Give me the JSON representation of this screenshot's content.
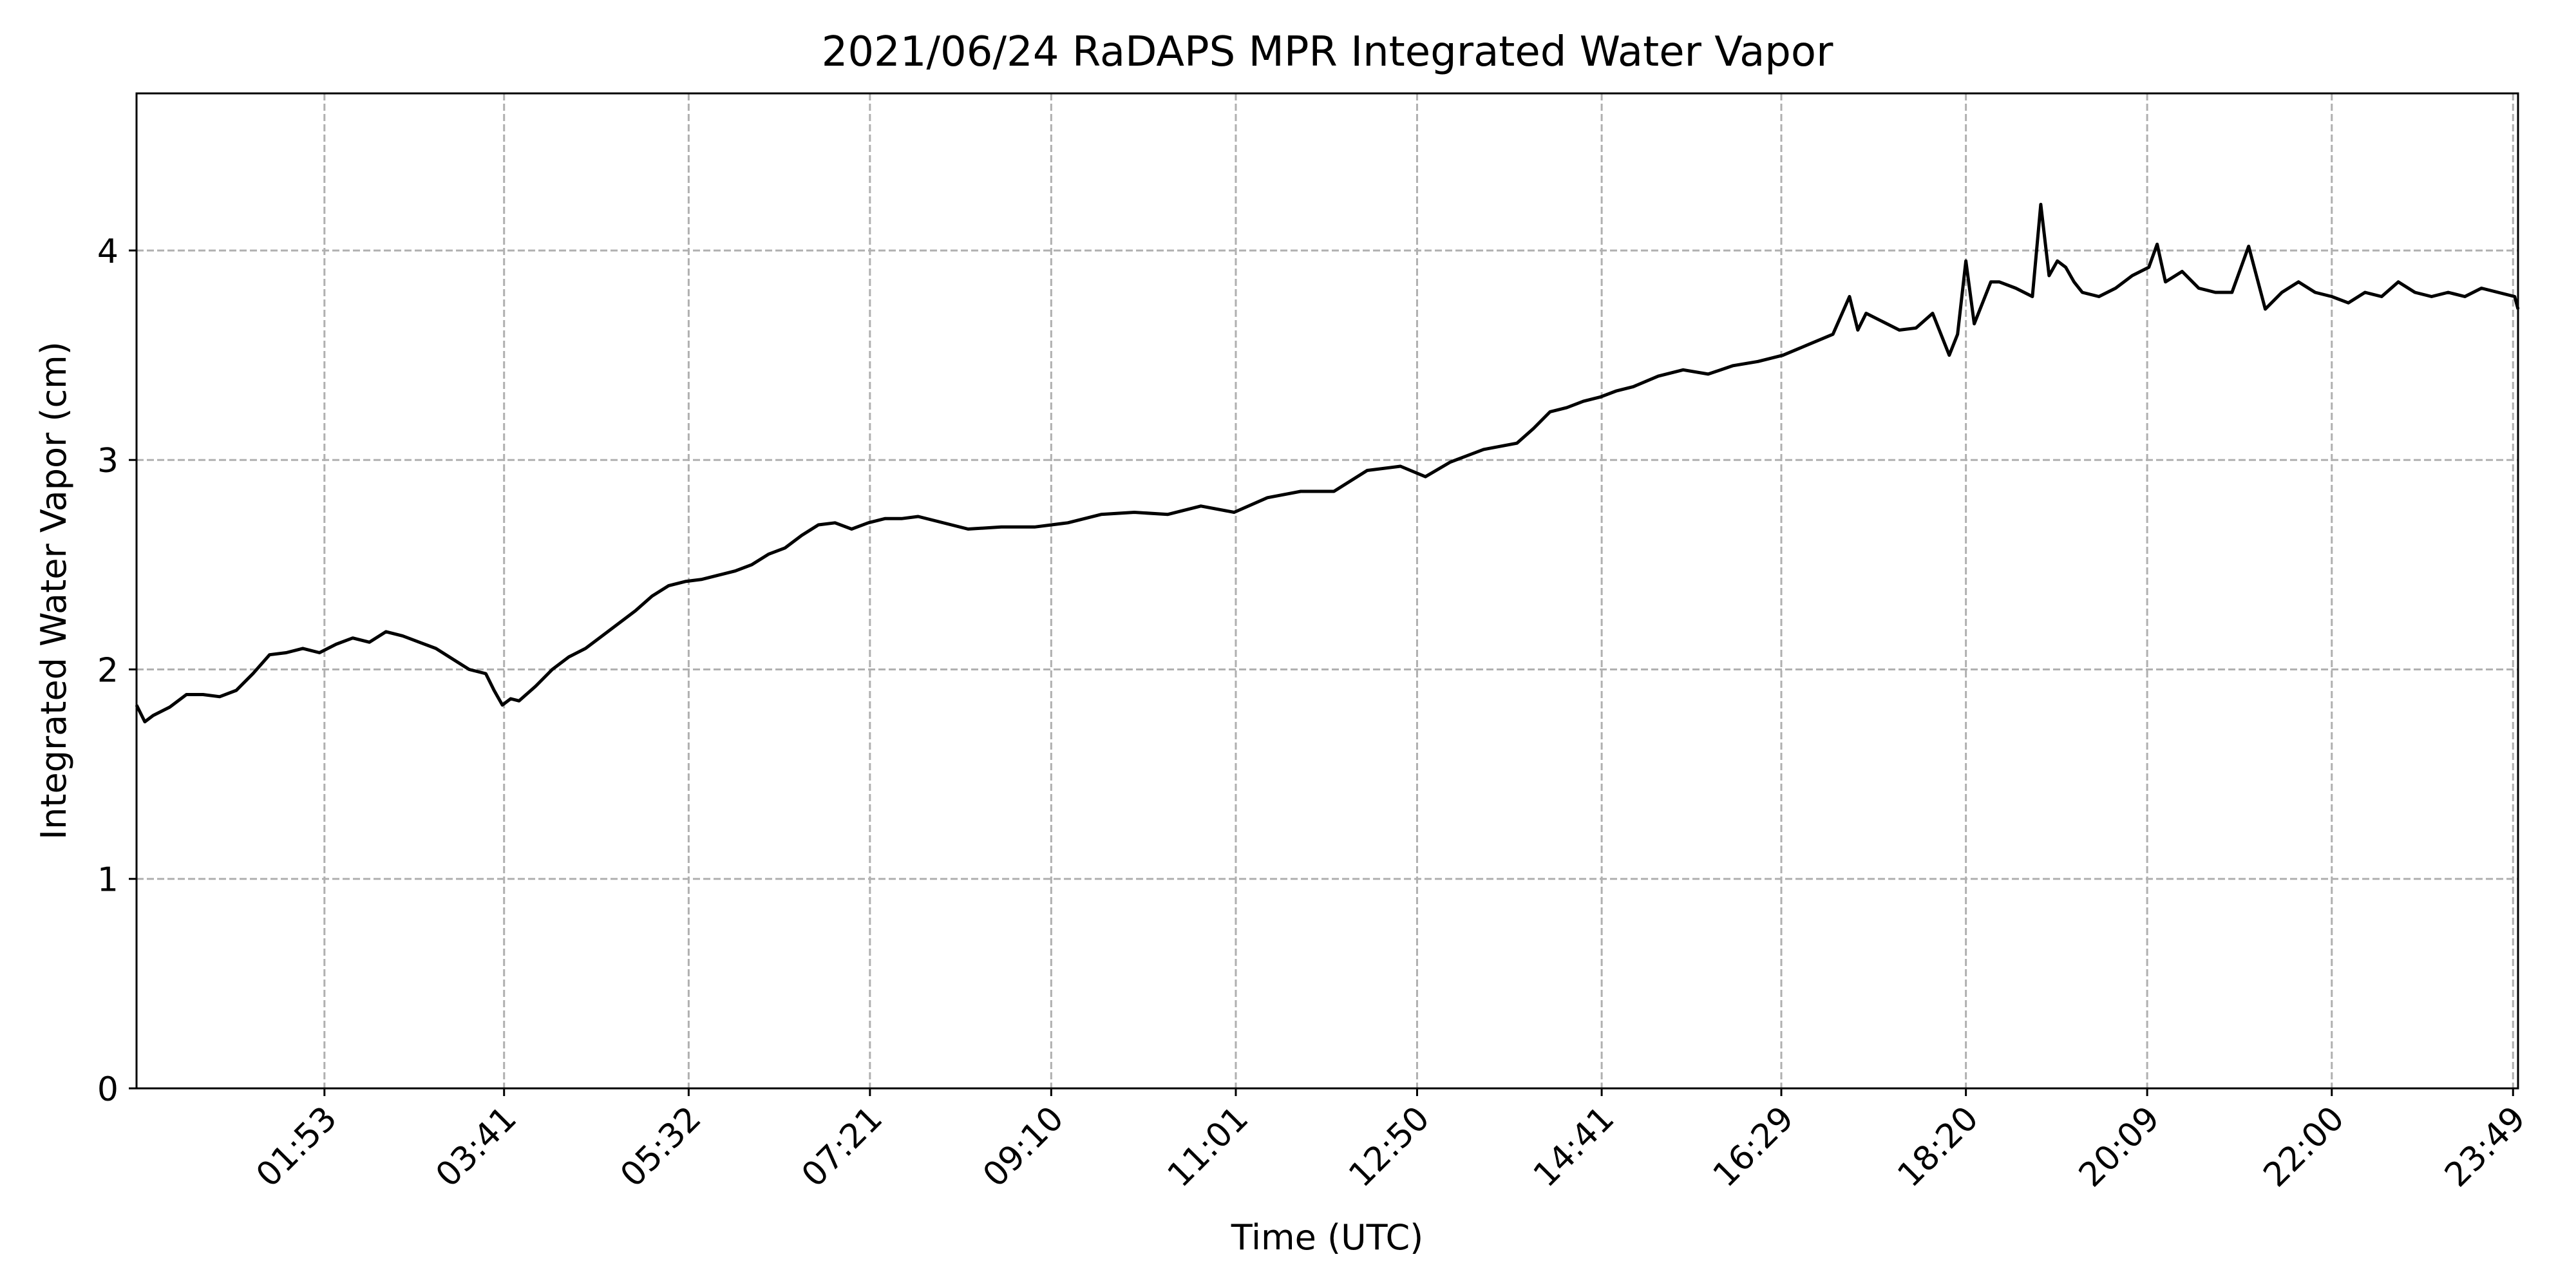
{
  "chart_data": {
    "type": "line",
    "title": "2021/06/24 RaDAPS MPR Integrated Water Vapor",
    "xlabel": "Time (UTC)",
    "ylabel": "Integrated Water Vapor (cm)",
    "xlim": [
      "00:00",
      "23:52"
    ],
    "ylim": [
      0,
      4.75
    ],
    "x_ticks": [
      "01:53",
      "03:41",
      "05:32",
      "07:21",
      "09:10",
      "11:01",
      "12:50",
      "14:41",
      "16:29",
      "18:20",
      "20:09",
      "22:00",
      "23:49"
    ],
    "y_ticks": [
      0,
      1,
      2,
      3,
      4
    ],
    "grid": true,
    "line_color": "#000000",
    "grid_color": "#b0b0b0",
    "series": [
      {
        "x": [
          "00:00",
          "00:05",
          "00:10",
          "00:20",
          "00:30",
          "00:40",
          "00:50",
          "01:00",
          "01:10",
          "01:20",
          "01:30",
          "01:40",
          "01:50",
          "02:00",
          "02:10",
          "02:20",
          "02:30",
          "02:40",
          "02:50",
          "03:00",
          "03:10",
          "03:20",
          "03:30",
          "03:35",
          "03:40",
          "03:45",
          "03:50",
          "04:00",
          "04:10",
          "04:20",
          "04:30",
          "04:40",
          "04:50",
          "05:00",
          "05:10",
          "05:20",
          "05:30",
          "05:40",
          "05:50",
          "06:00",
          "06:10",
          "06:20",
          "06:30",
          "06:40",
          "06:50",
          "07:00",
          "07:10",
          "07:20",
          "07:30",
          "07:40",
          "07:50",
          "08:00",
          "08:20",
          "08:40",
          "09:00",
          "09:20",
          "09:40",
          "10:00",
          "10:20",
          "10:40",
          "11:00",
          "11:20",
          "11:40",
          "12:00",
          "12:20",
          "12:40",
          "12:55",
          "13:10",
          "13:30",
          "13:50",
          "14:00",
          "14:10",
          "14:20",
          "14:30",
          "14:40",
          "14:50",
          "15:00",
          "15:15",
          "15:30",
          "15:45",
          "16:00",
          "16:15",
          "16:30",
          "16:45",
          "17:00",
          "17:10",
          "17:15",
          "17:20",
          "17:30",
          "17:40",
          "17:50",
          "18:00",
          "18:10",
          "18:15",
          "18:20",
          "18:25",
          "18:30",
          "18:35",
          "18:40",
          "18:50",
          "19:00",
          "19:05",
          "19:10",
          "19:15",
          "19:20",
          "19:25",
          "19:30",
          "19:40",
          "19:50",
          "20:00",
          "20:10",
          "20:15",
          "20:20",
          "20:30",
          "20:40",
          "20:50",
          "21:00",
          "21:10",
          "21:20",
          "21:30",
          "21:40",
          "21:50",
          "22:00",
          "22:10",
          "22:20",
          "22:30",
          "22:40",
          "22:50",
          "23:00",
          "23:10",
          "23:20",
          "23:30",
          "23:40",
          "23:50",
          "23:52"
        ],
        "values": [
          1.83,
          1.75,
          1.78,
          1.82,
          1.88,
          1.88,
          1.87,
          1.9,
          1.98,
          2.07,
          2.08,
          2.1,
          2.08,
          2.12,
          2.15,
          2.13,
          2.18,
          2.16,
          2.13,
          2.1,
          2.05,
          2.0,
          1.98,
          1.9,
          1.83,
          1.86,
          1.85,
          1.92,
          2.0,
          2.06,
          2.1,
          2.16,
          2.22,
          2.28,
          2.35,
          2.4,
          2.42,
          2.43,
          2.45,
          2.47,
          2.5,
          2.55,
          2.58,
          2.64,
          2.69,
          2.7,
          2.67,
          2.7,
          2.72,
          2.72,
          2.73,
          2.71,
          2.67,
          2.68,
          2.68,
          2.7,
          2.74,
          2.75,
          2.74,
          2.78,
          2.75,
          2.82,
          2.85,
          2.85,
          2.95,
          2.97,
          2.92,
          2.99,
          3.05,
          3.08,
          3.15,
          3.23,
          3.25,
          3.28,
          3.3,
          3.33,
          3.35,
          3.4,
          3.43,
          3.41,
          3.45,
          3.47,
          3.5,
          3.55,
          3.6,
          3.78,
          3.62,
          3.7,
          3.66,
          3.62,
          3.63,
          3.7,
          3.5,
          3.6,
          3.95,
          3.65,
          3.75,
          3.85,
          3.85,
          3.82,
          3.78,
          4.22,
          3.88,
          3.95,
          3.92,
          3.85,
          3.8,
          3.78,
          3.82,
          3.88,
          3.92,
          4.03,
          3.85,
          3.9,
          3.82,
          3.8,
          3.8,
          4.02,
          3.72,
          3.8,
          3.85,
          3.8,
          3.78,
          3.75,
          3.8,
          3.78,
          3.85,
          3.8,
          3.78,
          3.8,
          3.78,
          3.82,
          3.8,
          3.78,
          3.72
        ]
      }
    ]
  }
}
